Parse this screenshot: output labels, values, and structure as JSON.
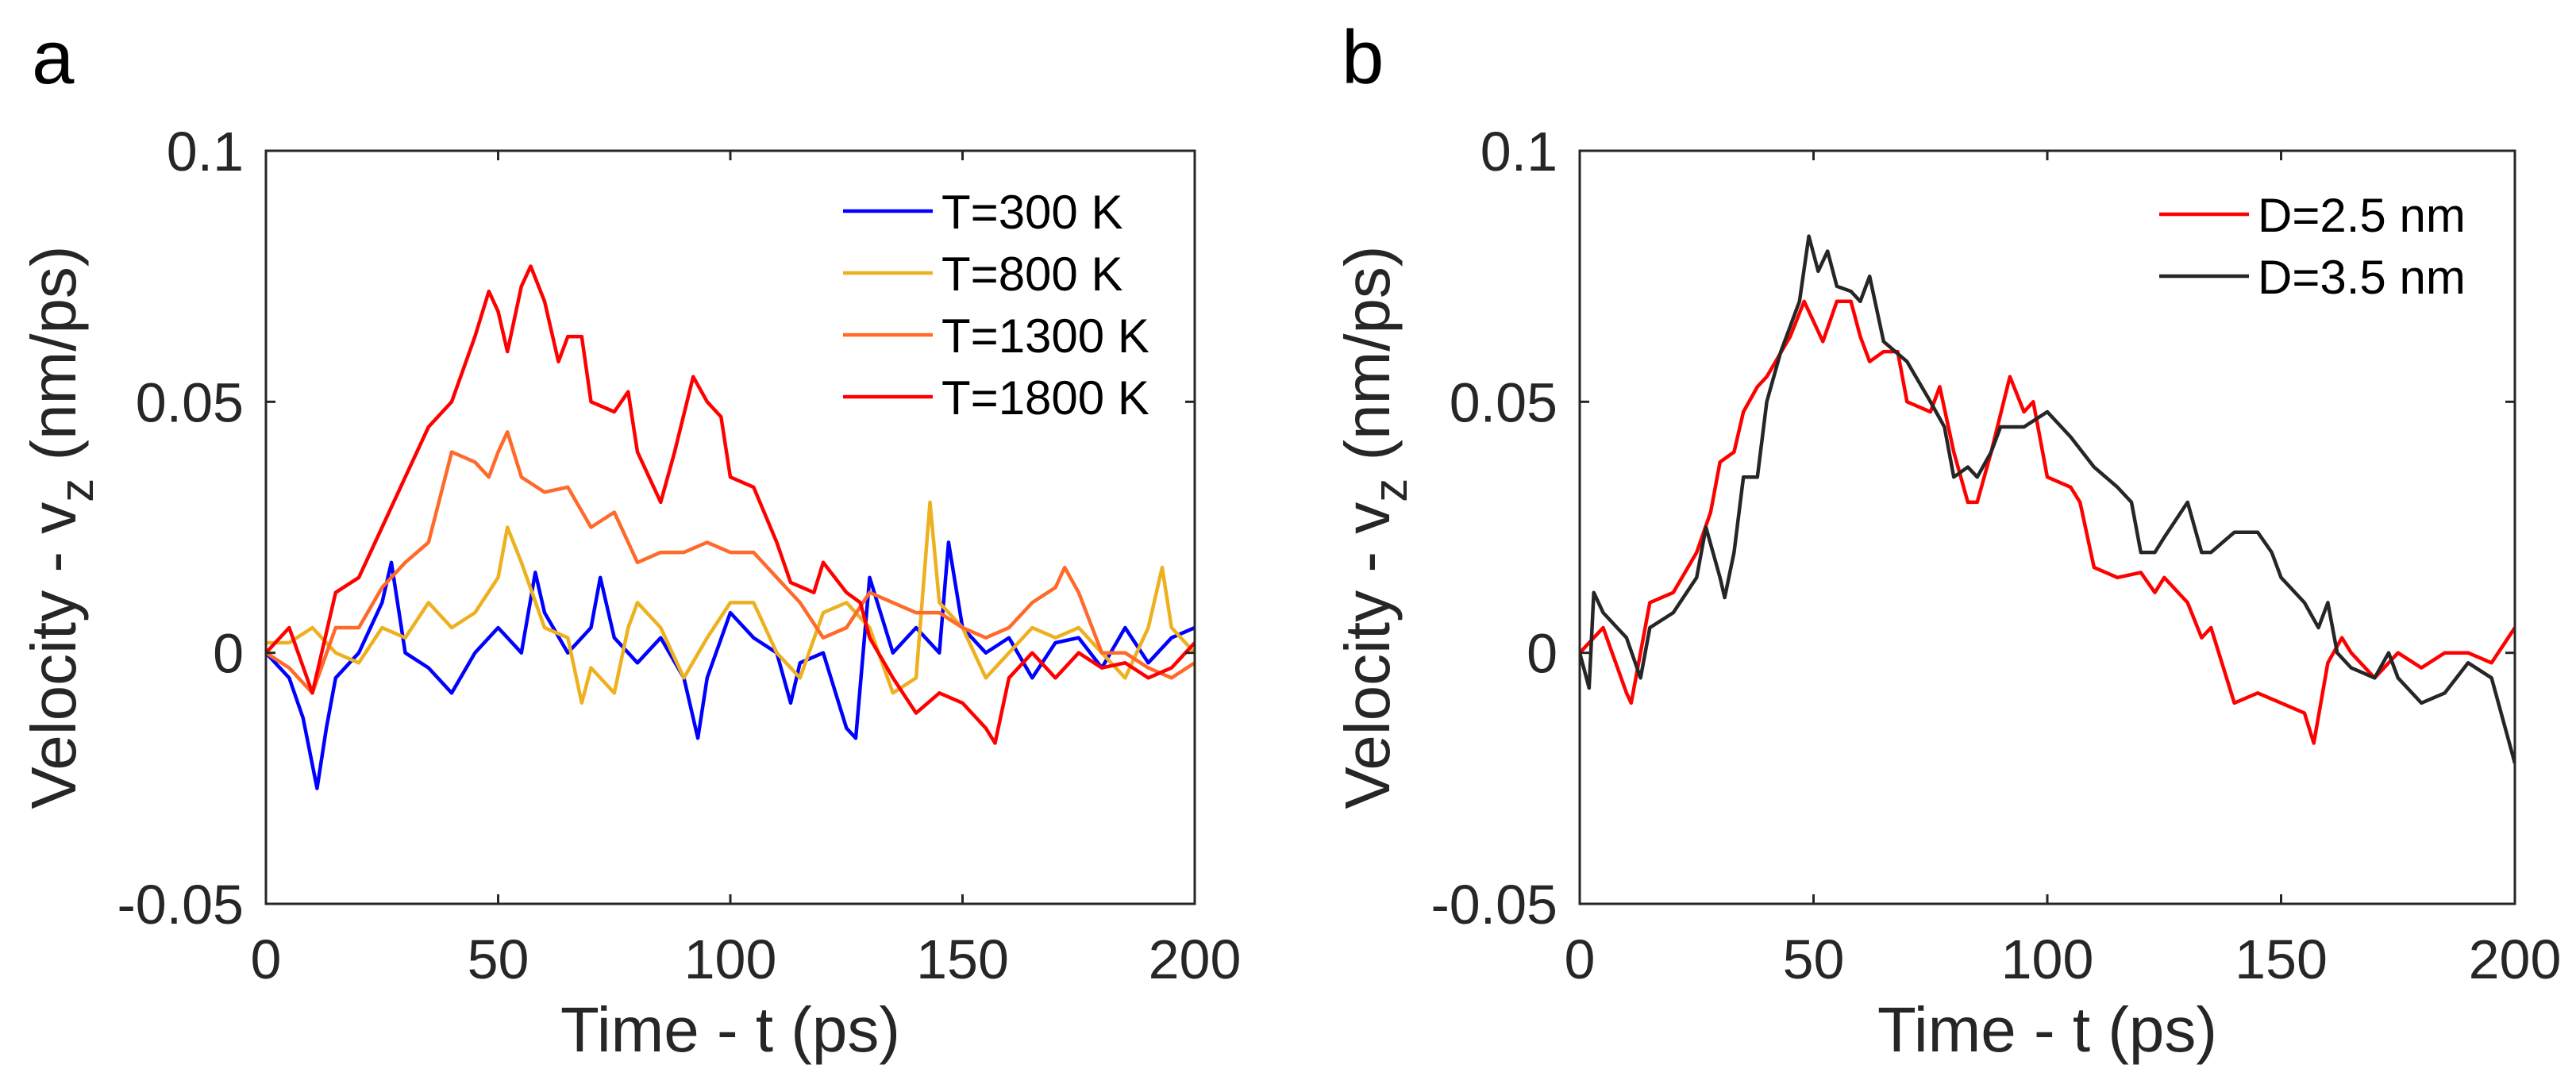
{
  "chart_data": [
    {
      "panel_label": "a",
      "type": "line",
      "xlabel": "Time - t (ps)",
      "ylabel_main": "Velocity - v",
      "ylabel_sub": "z",
      "ylabel_unit": " (nm/ps)",
      "xlim": [
        0,
        200
      ],
      "ylim": [
        -0.05,
        0.1
      ],
      "xticks": [
        0,
        50,
        100,
        150,
        200
      ],
      "yticks": [
        -0.05,
        0,
        0.05,
        0.1
      ],
      "ytick_labels": [
        "-0.05",
        "0",
        "0.05",
        "0.1"
      ],
      "grid": false,
      "legend_position": "top-right",
      "series": [
        {
          "name": "T=300 K",
          "color": "#0000ff",
          "x": [
            0,
            5,
            8,
            11,
            13,
            15,
            20,
            25,
            27,
            30,
            35,
            40,
            45,
            50,
            55,
            58,
            60,
            65,
            70,
            72,
            75,
            80,
            85,
            90,
            93,
            95,
            100,
            105,
            110,
            113,
            115,
            120,
            125,
            127,
            130,
            135,
            140,
            145,
            147,
            150,
            155,
            160,
            165,
            170,
            175,
            180,
            185,
            190,
            195,
            200
          ],
          "y": [
            0,
            -0.005,
            -0.013,
            -0.027,
            -0.015,
            -0.005,
            0,
            0.01,
            0.018,
            0,
            -0.003,
            -0.008,
            0,
            0.005,
            0,
            0.016,
            0.008,
            0,
            0.005,
            0.015,
            0.003,
            -0.002,
            0.003,
            -0.005,
            -0.017,
            -0.005,
            0.008,
            0.003,
            0,
            -0.01,
            -0.002,
            0,
            -0.015,
            -0.017,
            0.015,
            0,
            0.005,
            0,
            0.022,
            0.005,
            0,
            0.003,
            -0.005,
            0.002,
            0.003,
            -0.003,
            0.005,
            -0.002,
            0.003,
            0.005
          ]
        },
        {
          "name": "T=800 K",
          "color": "#edb120",
          "x": [
            0,
            5,
            10,
            15,
            20,
            25,
            30,
            35,
            40,
            45,
            50,
            52,
            55,
            60,
            65,
            68,
            70,
            75,
            78,
            80,
            85,
            90,
            95,
            100,
            105,
            110,
            115,
            120,
            125,
            130,
            135,
            140,
            143,
            145,
            150,
            155,
            160,
            165,
            170,
            175,
            180,
            185,
            190,
            193,
            195,
            200
          ],
          "y": [
            0.002,
            0.002,
            0.005,
            0,
            -0.002,
            0.005,
            0.003,
            0.01,
            0.005,
            0.008,
            0.015,
            0.025,
            0.018,
            0.005,
            0.003,
            -0.01,
            -0.003,
            -0.008,
            0.005,
            0.01,
            0.005,
            -0.005,
            0.003,
            0.01,
            0.01,
            0,
            -0.005,
            0.008,
            0.01,
            0.005,
            -0.008,
            -0.005,
            0.03,
            0.01,
            0.005,
            -0.005,
            0,
            0.005,
            0.003,
            0.005,
            0,
            -0.005,
            0.005,
            0.017,
            0.005,
            0
          ]
        },
        {
          "name": "T=1300 K",
          "color": "#ff6a2a",
          "x": [
            0,
            5,
            10,
            15,
            20,
            25,
            30,
            35,
            40,
            45,
            48,
            50,
            52,
            55,
            60,
            65,
            70,
            75,
            80,
            85,
            90,
            95,
            100,
            105,
            110,
            115,
            120,
            125,
            130,
            135,
            140,
            145,
            150,
            155,
            160,
            165,
            170,
            172,
            175,
            180,
            185,
            190,
            195,
            200
          ],
          "y": [
            0,
            -0.003,
            -0.008,
            0.005,
            0.005,
            0.013,
            0.018,
            0.022,
            0.04,
            0.038,
            0.035,
            0.04,
            0.044,
            0.035,
            0.032,
            0.033,
            0.025,
            0.028,
            0.018,
            0.02,
            0.02,
            0.022,
            0.02,
            0.02,
            0.015,
            0.01,
            0.003,
            0.005,
            0.012,
            0.01,
            0.008,
            0.008,
            0.005,
            0.003,
            0.005,
            0.01,
            0.013,
            0.017,
            0.012,
            0,
            0,
            -0.003,
            -0.005,
            -0.002
          ]
        },
        {
          "name": "T=1800 K",
          "color": "#ff0000",
          "x": [
            0,
            5,
            10,
            15,
            20,
            25,
            30,
            35,
            40,
            45,
            48,
            50,
            52,
            55,
            57,
            60,
            63,
            65,
            68,
            70,
            75,
            78,
            80,
            85,
            88,
            92,
            95,
            98,
            100,
            105,
            110,
            113,
            118,
            120,
            125,
            128,
            130,
            135,
            140,
            145,
            150,
            155,
            157,
            160,
            165,
            170,
            175,
            180,
            185,
            190,
            195,
            200
          ],
          "y": [
            0,
            0.005,
            -0.008,
            0.012,
            0.015,
            0.025,
            0.035,
            0.045,
            0.05,
            0.063,
            0.072,
            0.068,
            0.06,
            0.073,
            0.077,
            0.07,
            0.058,
            0.063,
            0.063,
            0.05,
            0.048,
            0.052,
            0.04,
            0.03,
            0.04,
            0.055,
            0.05,
            0.047,
            0.035,
            0.033,
            0.022,
            0.014,
            0.012,
            0.018,
            0.012,
            0.01,
            0.003,
            -0.005,
            -0.012,
            -0.008,
            -0.01,
            -0.015,
            -0.018,
            -0.005,
            0,
            -0.005,
            0,
            -0.003,
            -0.002,
            -0.005,
            -0.003,
            0.002
          ]
        }
      ]
    },
    {
      "panel_label": "b",
      "type": "line",
      "xlabel": "Time - t (ps)",
      "ylabel_main": "Velocity - v",
      "ylabel_sub": "z",
      "ylabel_unit": " (nm/ps)",
      "xlim": [
        0,
        200
      ],
      "ylim": [
        -0.05,
        0.1
      ],
      "xticks": [
        0,
        50,
        100,
        150,
        200
      ],
      "yticks": [
        -0.05,
        0,
        0.05,
        0.1
      ],
      "ytick_labels": [
        "-0.05",
        "0",
        "0.05",
        "0.1"
      ],
      "grid": false,
      "legend_position": "top-right",
      "series": [
        {
          "name": "D=2.5 nm",
          "color": "#ff0000",
          "x": [
            0,
            5,
            10,
            11,
            15,
            20,
            25,
            28,
            30,
            33,
            35,
            38,
            40,
            45,
            48,
            50,
            52,
            55,
            58,
            60,
            62,
            65,
            68,
            70,
            75,
            77,
            80,
            83,
            85,
            88,
            92,
            95,
            97,
            100,
            105,
            107,
            110,
            115,
            120,
            123,
            125,
            130,
            133,
            135,
            140,
            145,
            150,
            155,
            157,
            160,
            163,
            165,
            170,
            175,
            180,
            185,
            190,
            195,
            200
          ],
          "y": [
            0,
            0.005,
            -0.008,
            -0.01,
            0.01,
            0.012,
            0.02,
            0.028,
            0.038,
            0.04,
            0.048,
            0.053,
            0.055,
            0.063,
            0.07,
            0.066,
            0.062,
            0.07,
            0.07,
            0.063,
            0.058,
            0.06,
            0.06,
            0.05,
            0.048,
            0.053,
            0.04,
            0.03,
            0.03,
            0.04,
            0.055,
            0.048,
            0.05,
            0.035,
            0.033,
            0.03,
            0.017,
            0.015,
            0.016,
            0.012,
            0.015,
            0.01,
            0.003,
            0.005,
            -0.01,
            -0.008,
            -0.01,
            -0.012,
            -0.018,
            -0.002,
            0.003,
            0,
            -0.005,
            0,
            -0.003,
            0,
            0,
            -0.002,
            0.005
          ]
        },
        {
          "name": "D=3.5 nm",
          "color": "#262626",
          "x": [
            0,
            2,
            3,
            5,
            10,
            13,
            15,
            20,
            25,
            27,
            30,
            31,
            33,
            35,
            38,
            40,
            43,
            45,
            47,
            49,
            51,
            53,
            55,
            58,
            60,
            62,
            65,
            70,
            75,
            78,
            80,
            83,
            85,
            88,
            90,
            95,
            100,
            105,
            110,
            115,
            118,
            120,
            123,
            125,
            130,
            133,
            135,
            140,
            145,
            148,
            150,
            155,
            158,
            160,
            162,
            165,
            170,
            173,
            175,
            180,
            185,
            190,
            195,
            200
          ],
          "y": [
            0,
            -0.007,
            0.012,
            0.008,
            0.003,
            -0.005,
            0.005,
            0.008,
            0.015,
            0.025,
            0.015,
            0.011,
            0.02,
            0.035,
            0.035,
            0.05,
            0.06,
            0.065,
            0.07,
            0.083,
            0.076,
            0.08,
            0.073,
            0.072,
            0.07,
            0.075,
            0.062,
            0.058,
            0.05,
            0.045,
            0.035,
            0.037,
            0.035,
            0.04,
            0.045,
            0.045,
            0.048,
            0.043,
            0.037,
            0.033,
            0.03,
            0.02,
            0.02,
            0.023,
            0.03,
            0.02,
            0.02,
            0.024,
            0.024,
            0.02,
            0.015,
            0.01,
            0.005,
            0.01,
            0,
            -0.003,
            -0.005,
            0,
            -0.005,
            -0.01,
            -0.008,
            -0.002,
            -0.005,
            -0.022
          ]
        }
      ]
    }
  ]
}
